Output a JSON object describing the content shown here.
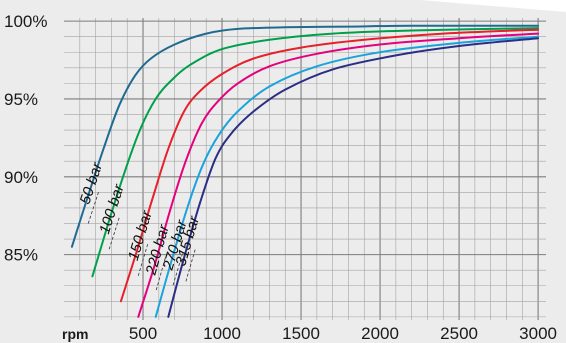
{
  "chart_data": {
    "type": "line",
    "title": "",
    "xlabel": "rpm",
    "ylabel": "",
    "xlim": [
      0,
      3050
    ],
    "ylim": [
      80.8,
      100.2
    ],
    "x_ticks": [
      500,
      1000,
      1500,
      2000,
      2500,
      3000
    ],
    "x_tick_labels": [
      "500",
      "1000",
      "1500",
      "2000",
      "2500",
      "3000"
    ],
    "y_ticks": [
      85,
      90,
      95,
      100
    ],
    "y_tick_labels": [
      "85%",
      "90%",
      "95%",
      "100%"
    ],
    "grid": true,
    "series": [
      {
        "name": "50 bar",
        "color": "#1f6a91",
        "x": [
          50,
          150,
          250,
          350,
          450,
          550,
          700,
          900,
          1100,
          1400,
          1800,
          2200,
          3000
        ],
        "y": [
          85.5,
          88.7,
          91.8,
          94.6,
          96.5,
          97.6,
          98.5,
          99.2,
          99.5,
          99.6,
          99.65,
          99.7,
          99.7
        ]
      },
      {
        "name": "100 bar",
        "color": "#00a04b",
        "x": [
          180,
          280,
          380,
          480,
          580,
          680,
          800,
          1000,
          1300,
          1700,
          2200,
          3000
        ],
        "y": [
          83.6,
          87.0,
          90.2,
          93.0,
          95.0,
          96.2,
          97.2,
          98.2,
          98.8,
          99.2,
          99.4,
          99.55
        ]
      },
      {
        "name": "150 bar",
        "color": "#e8202b",
        "x": [
          360,
          460,
          560,
          660,
          760,
          860,
          1000,
          1200,
          1500,
          1900,
          2400,
          3000
        ],
        "y": [
          82.0,
          85.2,
          88.6,
          91.8,
          94.2,
          95.5,
          96.6,
          97.6,
          98.3,
          98.8,
          99.2,
          99.45
        ]
      },
      {
        "name": "220 bar",
        "color": "#e5007d",
        "x": [
          470,
          570,
          670,
          770,
          870,
          970,
          1100,
          1300,
          1600,
          2000,
          2500,
          3000
        ],
        "y": [
          81.0,
          84.2,
          87.8,
          91.0,
          93.4,
          94.8,
          96.0,
          97.1,
          97.9,
          98.5,
          98.9,
          99.2
        ]
      },
      {
        "name": "270 bar",
        "color": "#1aa3dc",
        "x": [
          580,
          680,
          780,
          880,
          980,
          1100,
          1300,
          1600,
          2000,
          2500,
          3000
        ],
        "y": [
          81.0,
          84.6,
          88.0,
          90.8,
          92.7,
          94.2,
          95.8,
          97.1,
          98.0,
          98.6,
          99.0
        ]
      },
      {
        "name": "315 bar",
        "color": "#2a2f84",
        "x": [
          660,
          760,
          860,
          960,
          1060,
          1200,
          1400,
          1700,
          2100,
          2500,
          3000
        ],
        "y": [
          81.0,
          84.8,
          88.3,
          91.2,
          92.8,
          94.2,
          95.6,
          96.9,
          97.8,
          98.4,
          98.9
        ]
      }
    ]
  }
}
